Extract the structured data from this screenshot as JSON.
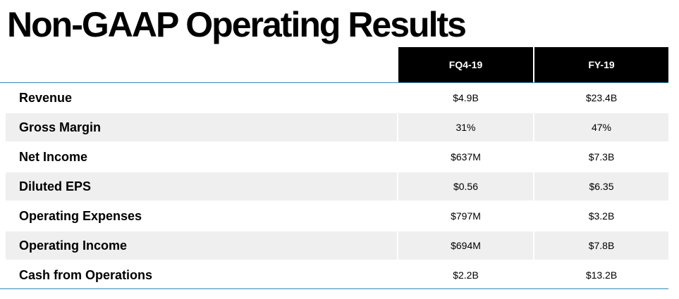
{
  "title": "Non-GAAP Operating Results",
  "columns": [
    "FQ4-19",
    "FY-19"
  ],
  "rows": [
    {
      "label": "Revenue",
      "q": "$4.9B",
      "fy": "$23.4B"
    },
    {
      "label": "Gross Margin",
      "q": "31%",
      "fy": "47%"
    },
    {
      "label": "Net Income",
      "q": "$637M",
      "fy": "$7.3B"
    },
    {
      "label": "Diluted EPS",
      "q": "$0.56",
      "fy": "$6.35"
    },
    {
      "label": "Operating Expenses",
      "q": "$797M",
      "fy": "$3.2B"
    },
    {
      "label": "Operating Income",
      "q": "$694M",
      "fy": "$7.8B"
    },
    {
      "label": "Cash from Operations",
      "q": "$2.2B",
      "fy": "$13.2B"
    }
  ],
  "colors": {
    "header_bg": "#000000",
    "header_text": "#ffffff",
    "rule": "#2f8ab5",
    "alt_row": "#efefef"
  }
}
